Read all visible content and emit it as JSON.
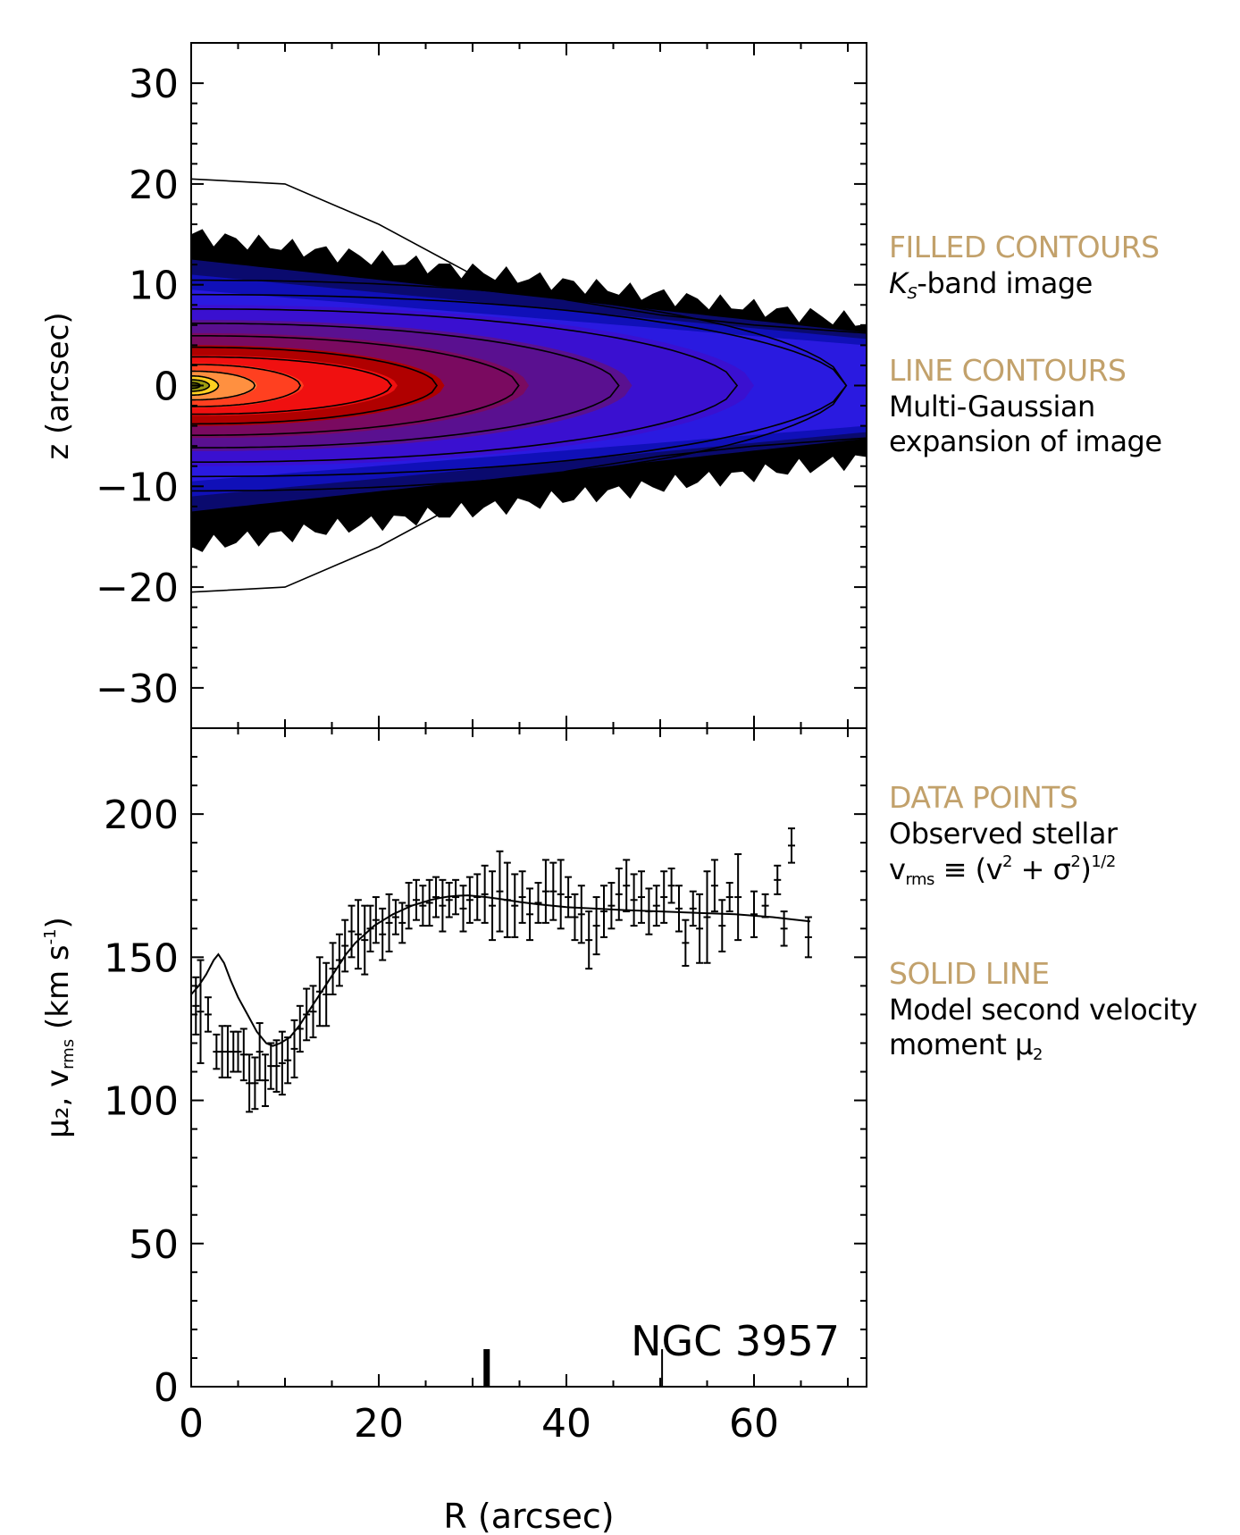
{
  "chart_data": [
    {
      "type": "contour",
      "ylabel": "z (arcsec)",
      "xlim": [
        0,
        72
      ],
      "ylim": [
        -34,
        34
      ],
      "y_ticks": [
        30,
        20,
        10,
        0,
        -10,
        -20,
        -30
      ],
      "y_tick_labels": [
        "30",
        "20",
        "10",
        "0",
        "−10",
        "−20",
        "−30"
      ],
      "filled_contour_colors": [
        "#000000",
        "#0a0a6e",
        "#1010b8",
        "#2a1ae0",
        "#3a10d0",
        "#5a1090",
        "#7a0a60",
        "#b00000",
        "#f01010",
        "#ff4020",
        "#ff9040",
        "#ffd020",
        "#9c9c10",
        "#606000",
        "#ffff80"
      ],
      "filled_contour_half_widths_arcsec_at_R0": [
        15,
        12.5,
        11,
        9.5,
        8,
        6.5,
        5.2,
        4,
        3,
        2.2,
        1.5,
        1,
        0.6,
        0.3
      ],
      "filled_contour_extent_R_arcsec": [
        72,
        72,
        72,
        72,
        60,
        47,
        36,
        27,
        22,
        12,
        7,
        3,
        2,
        1
      ],
      "line_contour_outer_halfwidth_arcsec": [
        [
          0,
          20.5
        ],
        [
          10,
          20
        ],
        [
          20,
          16
        ],
        [
          30,
          11
        ],
        [
          40,
          8.5
        ],
        [
          50,
          7
        ],
        [
          60,
          6
        ],
        [
          72,
          5.2
        ]
      ]
    },
    {
      "type": "scatter",
      "xlabel": "R (arcsec)",
      "xlim": [
        0,
        72
      ],
      "ylim": [
        0,
        230
      ],
      "x_ticks": [
        0,
        20,
        40,
        60
      ],
      "y_ticks": [
        0,
        50,
        100,
        150,
        200
      ],
      "annotation": "NGC 3957",
      "marker_x": [
        31.5,
        50.2
      ],
      "series": [
        {
          "kind": "errorbar",
          "points": [
            [
              0.5,
              133,
              10
            ],
            [
              1.0,
              131,
              18
            ],
            [
              1.8,
              130,
              6
            ],
            [
              2.7,
              117,
              6
            ],
            [
              3.3,
              117,
              9
            ],
            [
              3.9,
              117,
              9
            ],
            [
              4.5,
              117,
              7
            ],
            [
              5.0,
              117,
              7
            ],
            [
              5.6,
              116,
              9
            ],
            [
              6.2,
              106,
              10
            ],
            [
              6.8,
              106,
              9
            ],
            [
              7.3,
              117,
              10
            ],
            [
              7.9,
              107,
              9
            ],
            [
              8.5,
              112,
              8
            ],
            [
              9.1,
              112,
              9
            ],
            [
              9.7,
              113,
              11
            ],
            [
              10.3,
              114,
              8
            ],
            [
              11.0,
              118,
              10
            ],
            [
              11.6,
              125,
              8
            ],
            [
              12.3,
              130,
              9
            ],
            [
              13.0,
              131,
              9
            ],
            [
              13.7,
              138,
              12
            ],
            [
              14.4,
              137,
              11
            ],
            [
              15.1,
              146,
              9
            ],
            [
              15.8,
              149,
              9
            ],
            [
              16.4,
              154,
              9
            ],
            [
              17.1,
              159,
              9
            ],
            [
              17.8,
              158,
              12
            ],
            [
              18.5,
              156,
              12
            ],
            [
              19.1,
              160,
              8
            ],
            [
              19.7,
              163,
              8
            ],
            [
              20.4,
              158,
              9
            ],
            [
              21.1,
              162,
              10
            ],
            [
              21.8,
              164,
              6
            ],
            [
              22.5,
              162,
              7
            ],
            [
              23.2,
              168,
              8
            ],
            [
              24.0,
              170,
              7
            ],
            [
              24.7,
              168,
              7
            ],
            [
              25.4,
              169,
              8
            ],
            [
              26.1,
              171,
              7
            ],
            [
              26.8,
              168,
              9
            ],
            [
              27.5,
              170,
              6
            ],
            [
              28.2,
              171,
              6
            ],
            [
              29.0,
              167,
              8
            ],
            [
              29.7,
              170,
              8
            ],
            [
              30.5,
              171,
              8
            ],
            [
              31.3,
              172,
              10
            ],
            [
              32.1,
              168,
              12
            ],
            [
              32.9,
              173,
              14
            ],
            [
              33.7,
              170,
              13
            ],
            [
              34.5,
              168,
              11
            ],
            [
              35.3,
              171,
              9
            ],
            [
              36.1,
              165,
              9
            ],
            [
              37.0,
              169,
              7
            ],
            [
              37.8,
              173,
              11
            ],
            [
              38.6,
              173,
              10
            ],
            [
              39.4,
              172,
              12
            ],
            [
              40.2,
              171,
              7
            ],
            [
              40.9,
              164,
              8
            ],
            [
              41.6,
              165,
              10
            ],
            [
              42.4,
              156,
              10
            ],
            [
              43.2,
              161,
              10
            ],
            [
              44.0,
              166,
              9
            ],
            [
              44.8,
              168,
              8
            ],
            [
              45.6,
              172,
              9
            ],
            [
              46.4,
              175,
              9
            ],
            [
              47.2,
              170,
              9
            ],
            [
              48.0,
              171,
              9
            ],
            [
              48.8,
              166,
              8
            ],
            [
              49.6,
              168,
              7
            ],
            [
              50.4,
              171,
              9
            ],
            [
              51.2,
              175,
              6
            ],
            [
              52.0,
              167,
              8
            ],
            [
              52.7,
              155,
              8
            ],
            [
              53.5,
              167,
              6
            ],
            [
              54.2,
              160,
              12
            ],
            [
              55.0,
              164,
              16
            ],
            [
              55.8,
              175,
              9
            ],
            [
              56.6,
              161,
              9
            ],
            [
              57.4,
              171,
              5
            ],
            [
              58.3,
              171,
              15
            ],
            [
              60.0,
              165,
              8
            ],
            [
              61.2,
              168,
              4
            ],
            [
              62.5,
              177,
              5
            ],
            [
              63.2,
              160,
              6
            ],
            [
              64.0,
              189,
              6
            ],
            [
              65.8,
              157,
              7
            ]
          ]
        },
        {
          "kind": "line",
          "points": [
            [
              0,
              137
            ],
            [
              0.8,
              140
            ],
            [
              1.6,
              144
            ],
            [
              2.4,
              149
            ],
            [
              2.9,
              151
            ],
            [
              3.5,
              148
            ],
            [
              4.2,
              142
            ],
            [
              5.0,
              136
            ],
            [
              6.0,
              130
            ],
            [
              7.0,
              124
            ],
            [
              8.0,
              120
            ],
            [
              8.7,
              119
            ],
            [
              9.5,
              120
            ],
            [
              10.5,
              122
            ],
            [
              11.5,
              126
            ],
            [
              12.5,
              131
            ],
            [
              13.5,
              136
            ],
            [
              14.5,
              141
            ],
            [
              15.5,
              146
            ],
            [
              16.5,
              151
            ],
            [
              17.5,
              155
            ],
            [
              18.5,
              158
            ],
            [
              19.5,
              161
            ],
            [
              20.5,
              163
            ],
            [
              21.5,
              165
            ],
            [
              22.5,
              166.5
            ],
            [
              23.5,
              168
            ],
            [
              24.5,
              169
            ],
            [
              25.5,
              170
            ],
            [
              26.5,
              170.7
            ],
            [
              27.5,
              171.2
            ],
            [
              28.5,
              171.5
            ],
            [
              29.5,
              171.6
            ],
            [
              30.5,
              171.3
            ],
            [
              31.5,
              171
            ],
            [
              33,
              170.3
            ],
            [
              35,
              169.3
            ],
            [
              37,
              168.5
            ],
            [
              40,
              167.5
            ],
            [
              43,
              167
            ],
            [
              46,
              166.5
            ],
            [
              50,
              166
            ],
            [
              54,
              165.5
            ],
            [
              58,
              165
            ],
            [
              62,
              164
            ],
            [
              66,
              162.5
            ]
          ]
        }
      ]
    }
  ],
  "axis_labels": {
    "top_y": "z (arcsec)",
    "bottom_y": "μ₂, v",
    "bottom_y_sub": "rms",
    "bottom_y_unit": " (km s",
    "bottom_y_unit_sup": "-1",
    "bottom_y_unit_end": ")",
    "x": "R (arcsec)"
  },
  "legend": {
    "filled": {
      "head": "FILLED CONTOURS",
      "body_k": "K",
      "body_sub": "S",
      "body_rest": "-band image"
    },
    "line": {
      "head": "LINE CONTOURS",
      "body1": "Multi-Gaussian",
      "body2": "expansion of image"
    },
    "points": {
      "head": "DATA POINTS",
      "body1": "Observed stellar",
      "v": "v",
      "v_sub": "rms",
      "eq": " ≡  (v",
      "sq1": "2",
      "plus": " + σ",
      "sq2": "2",
      "close": ")",
      "half": "1/2"
    },
    "solid": {
      "head": "SOLID LINE",
      "body1": "Model second velocity",
      "body2": "moment μ",
      "mu_sub": "2"
    }
  }
}
